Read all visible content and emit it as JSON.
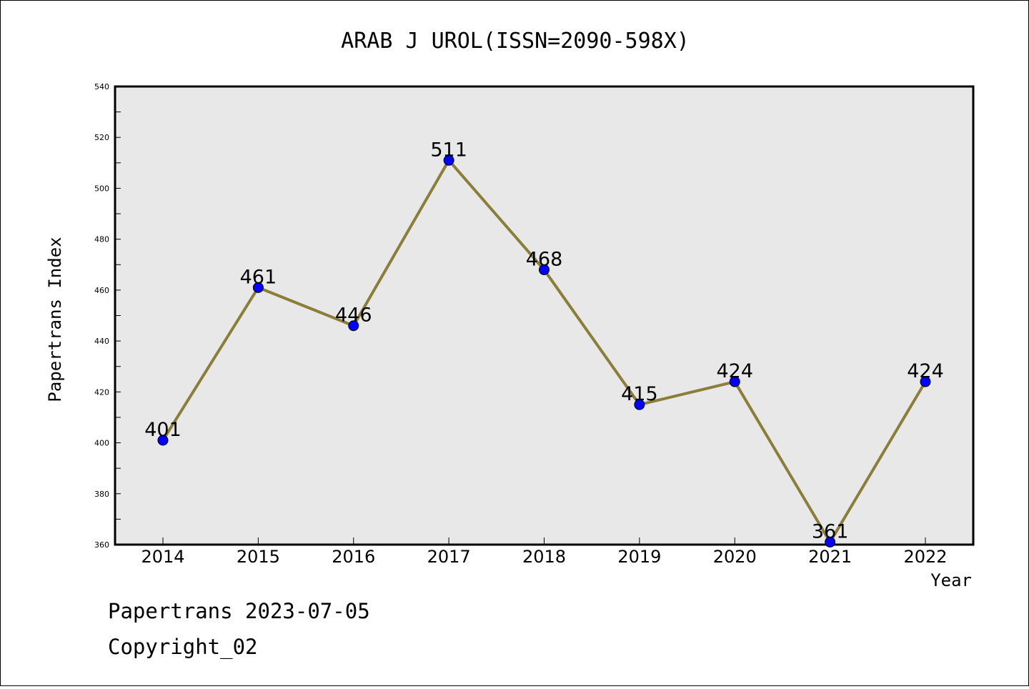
{
  "chart_data": {
    "type": "line",
    "title": "ARAB J UROL(ISSN=2090-598X)",
    "xlabel": "Year",
    "ylabel": "Papertrans Index",
    "categories": [
      "2014",
      "2015",
      "2016",
      "2017",
      "2018",
      "2019",
      "2020",
      "2021",
      "2022"
    ],
    "series": [
      {
        "values": [
          401,
          461,
          446,
          511,
          468,
          415,
          424,
          361,
          424
        ]
      }
    ],
    "data_labels": [
      "401",
      "461",
      "446",
      "511",
      "468",
      "415",
      "424",
      "361",
      "424"
    ],
    "ylim": [
      360,
      540
    ],
    "yticks": [
      "360",
      "380",
      "400",
      "420",
      "440",
      "460",
      "480",
      "500",
      "520",
      "540"
    ],
    "grid": false,
    "colors": {
      "line": "#8B7D3A",
      "marker": "#0000FF",
      "plot_background": "#E8E8E8"
    }
  },
  "footer": {
    "line1": "Papertrans 2023-07-05",
    "line2": "Copyright_02"
  }
}
